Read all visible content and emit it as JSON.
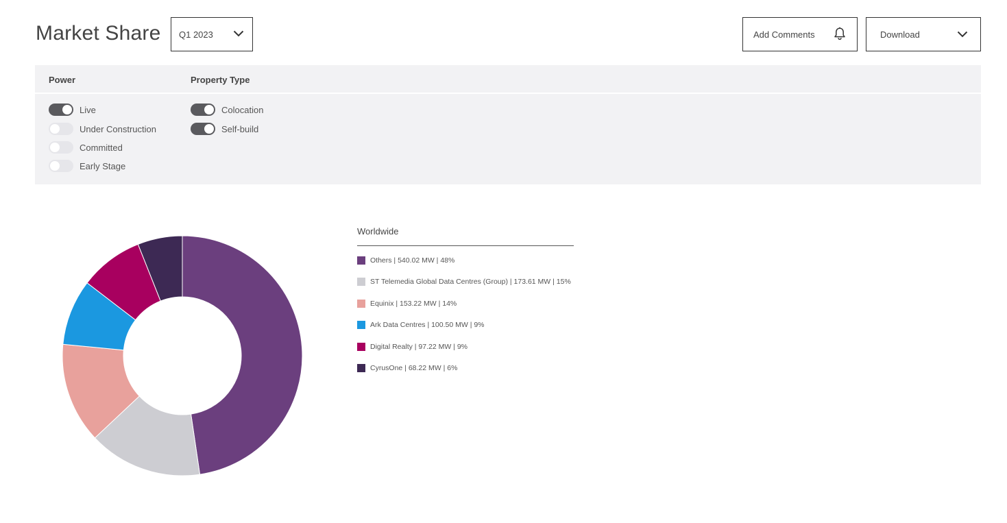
{
  "header": {
    "title": "Market Share",
    "period": "Q1 2023",
    "add_comments_label": "Add Comments",
    "download_label": "Download"
  },
  "filters": {
    "power": {
      "title": "Power",
      "items": [
        {
          "label": "Live",
          "on": true
        },
        {
          "label": "Under Construction",
          "on": false
        },
        {
          "label": "Committed",
          "on": false
        },
        {
          "label": "Early Stage",
          "on": false
        }
      ]
    },
    "property_type": {
      "title": "Property Type",
      "items": [
        {
          "label": "Colocation",
          "on": true
        },
        {
          "label": "Self-build",
          "on": true
        }
      ]
    }
  },
  "icons": {
    "period_chevron": "chevron-down-icon",
    "comments": "bell-icon",
    "download_chevron": "chevron-down-icon"
  },
  "chart_data": {
    "type": "pie",
    "donut": true,
    "title": "Worldwide",
    "legend_position": "right",
    "slices": [
      {
        "label": "Others | 540.02 MW | 48%",
        "name": "Others",
        "value": 540.02,
        "color": "#6b3f7e"
      },
      {
        "label": "ST Telemedia Global Data Centres (Group) | 173.61 MW | 15%",
        "name": "ST Telemedia Global Data Centres (Group)",
        "value": 173.61,
        "color": "#cdcdd2"
      },
      {
        "label": "Equinix | 153.22 MW | 14%",
        "name": "Equinix",
        "value": 153.22,
        "color": "#e8a19c"
      },
      {
        "label": "Ark Data Centres | 100.50 MW | 9%",
        "name": "Ark Data Centres",
        "value": 100.5,
        "color": "#1b98e0"
      },
      {
        "label": "Digital Realty | 97.22 MW | 9%",
        "name": "Digital Realty",
        "value": 97.22,
        "color": "#a8005f"
      },
      {
        "label": "CyrusOne | 68.22 MW | 6%",
        "name": "CyrusOne",
        "value": 68.22,
        "color": "#3d2954"
      }
    ]
  }
}
